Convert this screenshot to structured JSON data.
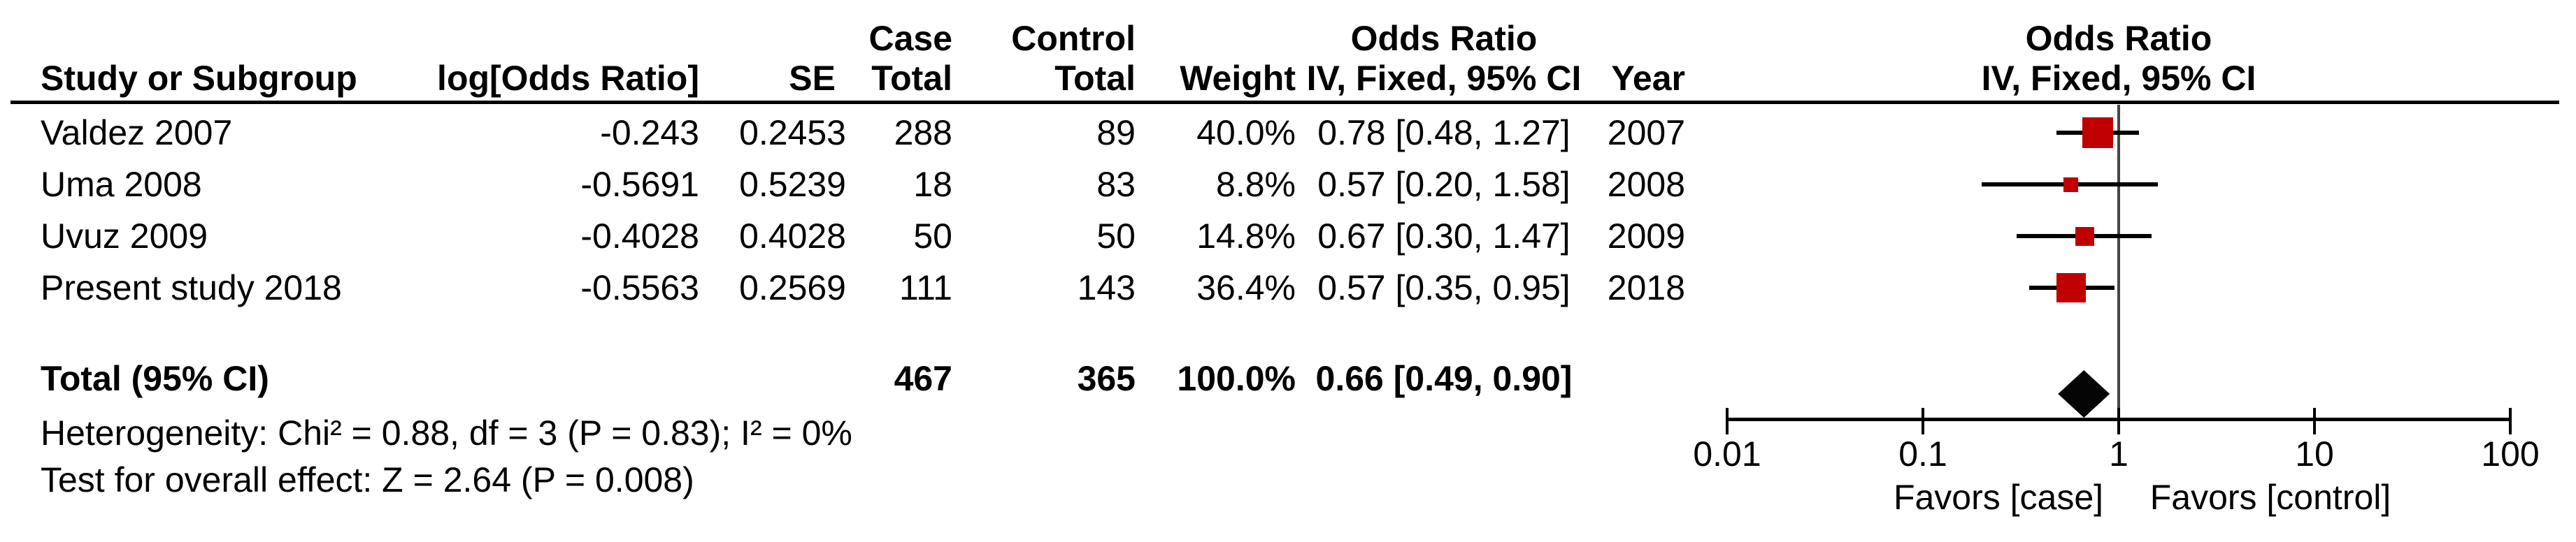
{
  "table": {
    "group_headers": {
      "case": "Case",
      "control": "Control",
      "odds_ratio_left": "Odds Ratio",
      "odds_ratio_right": "Odds Ratio"
    },
    "col_headers": {
      "study": "Study or Subgroup",
      "log_or": "log[Odds Ratio]",
      "se": "SE",
      "case_total": "Total",
      "control_total": "Total",
      "weight": "Weight",
      "or_ci": "IV, Fixed, 95% CI",
      "year": "Year",
      "or_ci_plot": "IV, Fixed, 95% CI"
    },
    "rows": [
      {
        "study": "Valdez 2007",
        "log_or": "-0.243",
        "se": "0.2453",
        "case_total": "288",
        "control_total": "89",
        "weight": "40.0%",
        "or_ci": "0.78 [0.48, 1.27]",
        "year": "2007"
      },
      {
        "study": "Uma 2008",
        "log_or": "-0.5691",
        "se": "0.5239",
        "case_total": "18",
        "control_total": "83",
        "weight": "8.8%",
        "or_ci": "0.57 [0.20, 1.58]",
        "year": "2008"
      },
      {
        "study": "Uvuz 2009",
        "log_or": "-0.4028",
        "se": "0.4028",
        "case_total": "50",
        "control_total": "50",
        "weight": "14.8%",
        "or_ci": "0.67 [0.30, 1.47]",
        "year": "2009"
      },
      {
        "study": "Present study 2018",
        "log_or": "-0.5563",
        "se": "0.2569",
        "case_total": "111",
        "control_total": "143",
        "weight": "36.4%",
        "or_ci": "0.57 [0.35, 0.95]",
        "year": "2018"
      }
    ],
    "total_row": {
      "label": "Total (95% CI)",
      "case_total": "467",
      "control_total": "365",
      "weight": "100.0%",
      "or_ci": "0.66 [0.49, 0.90]"
    },
    "footer": {
      "heterogeneity": "Heterogeneity: Chi² = 0.88, df = 3 (P = 0.83); I² = 0%",
      "overall_effect": "Test for overall effect: Z = 2.64 (P = 0.008)"
    }
  },
  "plot": {
    "axis_tick_labels": [
      "0.01",
      "0.1",
      "1",
      "10",
      "100"
    ],
    "favors_left": "Favors [case]",
    "favors_right": "Favors [control]",
    "colors": {
      "marker_square": "#c00000",
      "summary_diamond": "#050505",
      "ci_line": "#000000",
      "reference_line": "#454545",
      "axis": "#000000"
    }
  },
  "chart_data": {
    "type": "forest",
    "x_scale": "log10",
    "x_ticks": [
      0.01,
      0.1,
      1,
      10,
      100
    ],
    "xlim": [
      0.01,
      100
    ],
    "reference_line": 1,
    "effect_measure": "Odds Ratio, IV, Fixed, 95% CI",
    "studies": [
      {
        "name": "Valdez 2007",
        "or": 0.78,
        "ci_low": 0.48,
        "ci_high": 1.27,
        "weight_pct": 40.0,
        "year": 2007
      },
      {
        "name": "Uma 2008",
        "or": 0.57,
        "ci_low": 0.2,
        "ci_high": 1.58,
        "weight_pct": 8.8,
        "year": 2008
      },
      {
        "name": "Uvuz 2009",
        "or": 0.67,
        "ci_low": 0.3,
        "ci_high": 1.47,
        "weight_pct": 14.8,
        "year": 2009
      },
      {
        "name": "Present study 2018",
        "or": 0.57,
        "ci_low": 0.35,
        "ci_high": 0.95,
        "weight_pct": 36.4,
        "year": 2018
      }
    ],
    "total": {
      "or": 0.66,
      "ci_low": 0.49,
      "ci_high": 0.9,
      "weight_pct": 100.0,
      "heterogeneity": {
        "chi2": 0.88,
        "df": 3,
        "p": 0.83,
        "i2_pct": 0
      },
      "overall_effect": {
        "z": 2.64,
        "p": 0.008
      }
    }
  }
}
